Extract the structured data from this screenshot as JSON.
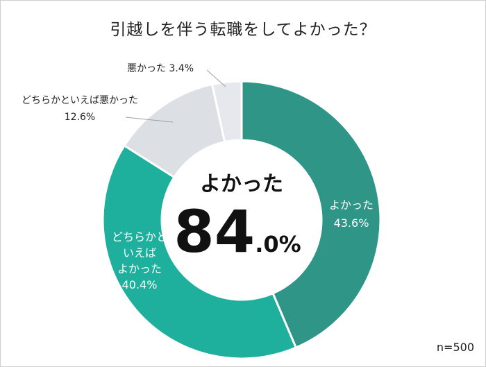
{
  "chart_data": {
    "type": "pie",
    "variant": "donut",
    "title": "引越しを伴う転職をしてよかった？",
    "categories": [
      "よかった",
      "どちらかといえばよかった",
      "どちらかといえば悪かった",
      "悪かった"
    ],
    "values": [
      43.6,
      40.4,
      12.6,
      3.4
    ],
    "unit": "%",
    "colors": [
      "#2e9587",
      "#1eb09c",
      "#dcdfe4",
      "#e5e8ec"
    ],
    "slice_labels": [
      {
        "lines": [
          "よかった",
          "43.6%"
        ]
      },
      {
        "lines": [
          "どちらかと",
          "いえば",
          "よかった",
          "40.4%"
        ]
      },
      {
        "lines": [
          "どちらかといえば悪かった",
          "12.6%"
        ]
      },
      {
        "lines": [
          "悪かった 3.4%"
        ]
      }
    ],
    "center_label": "よかった",
    "center_value_int": "84",
    "center_value_dec": ".0%",
    "legend": "none",
    "note": "n=500"
  }
}
